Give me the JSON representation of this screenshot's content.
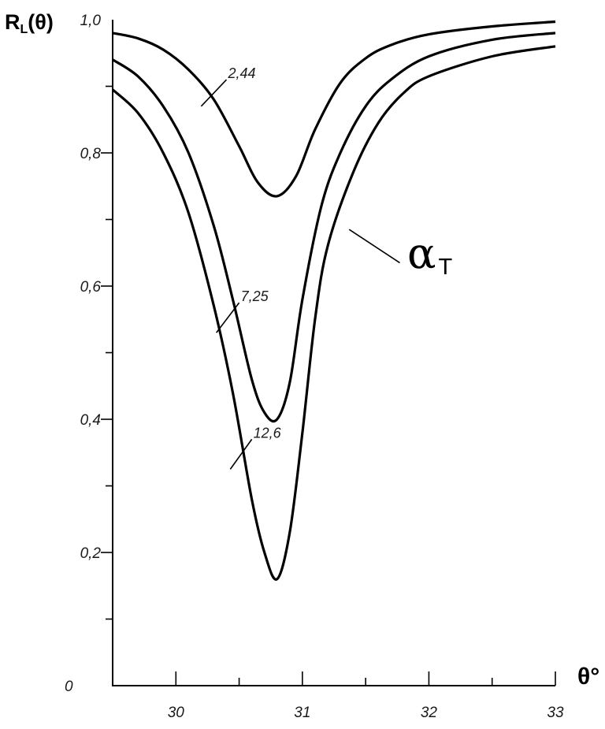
{
  "chart_data": {
    "type": "line",
    "ylabel_main": "R",
    "ylabel_sub": "L",
    "ylabel_rest": "(θ)",
    "xlabel": "θ°",
    "origin_label": "0",
    "xlim": [
      29.5,
      33
    ],
    "ylim": [
      0,
      1.0
    ],
    "x_ticks": [
      {
        "value": 30,
        "label": "30"
      },
      {
        "value": 31,
        "label": "31"
      },
      {
        "value": 32,
        "label": "32"
      },
      {
        "value": 33,
        "label": "33"
      }
    ],
    "x_minor_ticks": [
      29.5,
      30.5,
      31.5,
      32.5
    ],
    "y_ticks": [
      {
        "value": 0.2,
        "label": "0,2"
      },
      {
        "value": 0.4,
        "label": "0,4"
      },
      {
        "value": 0.6,
        "label": "0,6"
      },
      {
        "value": 0.8,
        "label": "0,8"
      },
      {
        "value": 1.0,
        "label": "1,0"
      }
    ],
    "y_minor_ticks": [
      0.1,
      0.3,
      0.5,
      0.7,
      0.9
    ],
    "grid": false,
    "series": [
      {
        "name": "2,44",
        "points": [
          [
            29.5,
            0.98
          ],
          [
            29.7,
            0.972
          ],
          [
            29.9,
            0.955
          ],
          [
            30.1,
            0.925
          ],
          [
            30.3,
            0.88
          ],
          [
            30.5,
            0.81
          ],
          [
            30.65,
            0.755
          ],
          [
            30.8,
            0.735
          ],
          [
            30.95,
            0.765
          ],
          [
            31.1,
            0.835
          ],
          [
            31.3,
            0.905
          ],
          [
            31.5,
            0.942
          ],
          [
            31.7,
            0.962
          ],
          [
            32.0,
            0.978
          ],
          [
            32.5,
            0.99
          ],
          [
            33.0,
            0.997
          ]
        ]
      },
      {
        "name": "7,25",
        "points": [
          [
            29.5,
            0.94
          ],
          [
            29.7,
            0.915
          ],
          [
            29.9,
            0.87
          ],
          [
            30.1,
            0.8
          ],
          [
            30.3,
            0.69
          ],
          [
            30.45,
            0.58
          ],
          [
            30.6,
            0.46
          ],
          [
            30.7,
            0.41
          ],
          [
            30.8,
            0.4
          ],
          [
            30.9,
            0.455
          ],
          [
            31.0,
            0.58
          ],
          [
            31.15,
            0.72
          ],
          [
            31.3,
            0.8
          ],
          [
            31.5,
            0.87
          ],
          [
            31.7,
            0.91
          ],
          [
            32.0,
            0.945
          ],
          [
            32.5,
            0.97
          ],
          [
            33.0,
            0.98
          ]
        ]
      },
      {
        "name": "12,6",
        "points": [
          [
            29.5,
            0.895
          ],
          [
            29.7,
            0.86
          ],
          [
            29.9,
            0.8
          ],
          [
            30.1,
            0.71
          ],
          [
            30.3,
            0.57
          ],
          [
            30.45,
            0.44
          ],
          [
            30.6,
            0.28
          ],
          [
            30.7,
            0.2
          ],
          [
            30.8,
            0.16
          ],
          [
            30.9,
            0.23
          ],
          [
            31.0,
            0.38
          ],
          [
            31.1,
            0.55
          ],
          [
            31.2,
            0.66
          ],
          [
            31.4,
            0.77
          ],
          [
            31.6,
            0.845
          ],
          [
            31.8,
            0.89
          ],
          [
            32.0,
            0.915
          ],
          [
            32.5,
            0.945
          ],
          [
            33.0,
            0.96
          ]
        ]
      }
    ],
    "curve_labels": [
      {
        "text": "2,44",
        "x": 30.2,
        "y": 0.87,
        "lx": 30.4,
        "ly": 0.91
      },
      {
        "text": "7,25",
        "x": 30.32,
        "y": 0.53,
        "lx": 30.5,
        "ly": 0.575
      },
      {
        "text": "12,6",
        "x": 30.43,
        "y": 0.325,
        "lx": 30.6,
        "ly": 0.37
      }
    ],
    "annotation": {
      "main": "α",
      "sub": "T",
      "x1": 31.37,
      "y1": 0.685,
      "x2": 31.77,
      "y2": 0.635
    }
  }
}
